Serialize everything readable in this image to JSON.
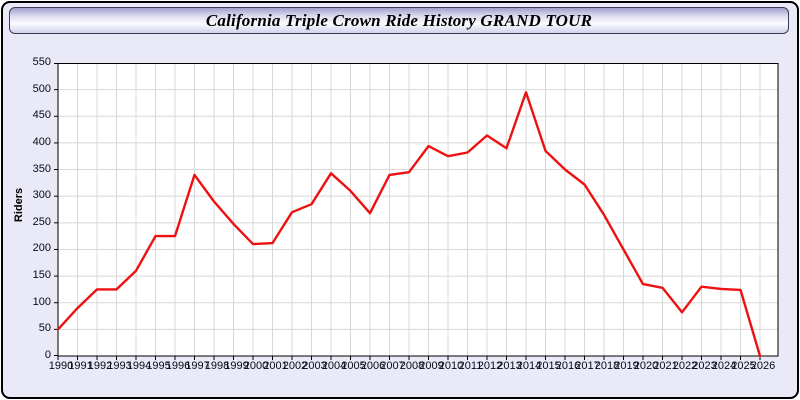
{
  "header": {
    "title": "California Triple Crown Ride History GRAND TOUR"
  },
  "chart_data": {
    "type": "line",
    "title": "California Triple Crown Ride History GRAND TOUR",
    "xlabel": "",
    "ylabel": "Riders",
    "x": [
      1990,
      1991,
      1992,
      1993,
      1994,
      1995,
      1996,
      1997,
      1998,
      1999,
      2000,
      2001,
      2002,
      2003,
      2004,
      2005,
      2006,
      2007,
      2008,
      2009,
      2010,
      2011,
      2012,
      2013,
      2014,
      2015,
      2016,
      2017,
      2018,
      2019,
      2020,
      2021,
      2022,
      2023,
      2024,
      2025,
      2026
    ],
    "series": [
      {
        "name": "Riders",
        "color": "#ee1111",
        "values": [
          50,
          90,
          125,
          125,
          160,
          225,
          225,
          340,
          290,
          248,
          210,
          212,
          270,
          285,
          343,
          310,
          268,
          340,
          345,
          394,
          375,
          382,
          414,
          390,
          495,
          385,
          350,
          322,
          265,
          200,
          135,
          128,
          82,
          130,
          126,
          124,
          0
        ]
      }
    ],
    "ylim": [
      0,
      550
    ],
    "yticks": [
      0,
      50,
      100,
      150,
      200,
      250,
      300,
      350,
      400,
      450,
      500,
      550
    ],
    "grid": true,
    "legend": "none",
    "colors": {
      "panel_background": "#e9e9f8",
      "plot_background": "#ffffff",
      "grid_line": "#d8d8d8",
      "axis_line": "#000000",
      "tick_label": "#0a0a14",
      "series_line": "#ee1111",
      "titlebar_border": "#3c3c50",
      "frame_border": "#000000"
    }
  }
}
